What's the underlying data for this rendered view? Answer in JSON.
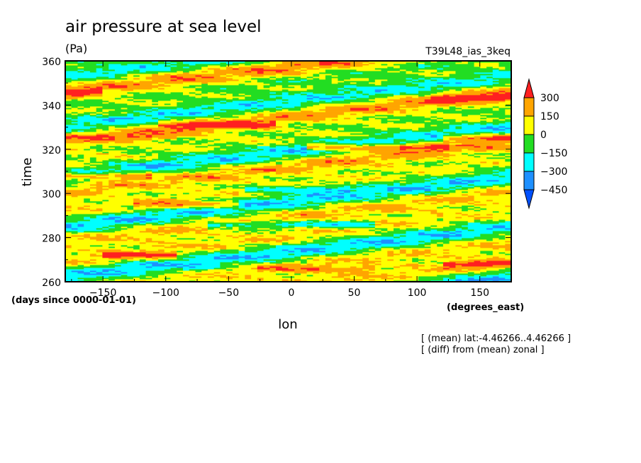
{
  "chart_data": {
    "type": "heatmap",
    "title": "air pressure at sea level",
    "units": "(Pa)",
    "experiment": "T39L48_ias_3keq",
    "xlabel": "lon",
    "xunits": "(degrees_east)",
    "ylabel": "time",
    "yunits": "(days since 0000-01-01)",
    "xlim": [
      -180,
      175
    ],
    "ylim": [
      260,
      360
    ],
    "xticks": [
      -150,
      -100,
      -50,
      0,
      50,
      100,
      150
    ],
    "yticks": [
      260,
      280,
      300,
      320,
      340,
      360
    ],
    "levels": [
      -450,
      -300,
      -150,
      0,
      150,
      300
    ],
    "level_labels": [
      "300",
      "150",
      "0",
      "−150",
      "−300",
      "−450"
    ],
    "colors": {
      "above_300": "#ff2020",
      "150_to_300": "#ffa500",
      "0_to_150": "#ffff00",
      "-150_to_0": "#22dd22",
      "-300_to_-150": "#00ffff",
      "-450_to_-300": "#1e90ff",
      "below_-450": "#0050ff"
    },
    "features": [
      {
        "time": 346,
        "lon_start": -180,
        "lon_end": -160,
        "value": 320
      },
      {
        "time": 343,
        "lon_start": 120,
        "lon_end": 175,
        "value": 320
      },
      {
        "time": 331,
        "lon_start": -100,
        "lon_end": -20,
        "value": 320
      },
      {
        "time": 326,
        "lon_start": -180,
        "lon_end": -100,
        "value": 200
      },
      {
        "time": 325,
        "lon_start": 130,
        "lon_end": 175,
        "value": 320
      },
      {
        "time": 321,
        "lon_start": 20,
        "lon_end": 120,
        "value": 320
      },
      {
        "time": 308,
        "lon_start": -180,
        "lon_end": -120,
        "value": 320
      },
      {
        "time": 302,
        "lon_start": -30,
        "lon_end": 40,
        "value": -250
      },
      {
        "time": 295,
        "lon_start": -120,
        "lon_end": -50,
        "value": 250
      },
      {
        "time": 286,
        "lon_start": -60,
        "lon_end": 60,
        "value": -250
      },
      {
        "time": 272,
        "lon_start": -140,
        "lon_end": -100,
        "value": 320
      },
      {
        "time": 268,
        "lon_start": 130,
        "lon_end": 175,
        "value": 320
      },
      {
        "time": 266,
        "lon_start": -20,
        "lon_end": 60,
        "value": 200
      }
    ],
    "annotations": [
      "[ (mean) lat:-4.46266..4.46266 ]",
      "[ (diff) from (mean) zonal ]"
    ]
  }
}
